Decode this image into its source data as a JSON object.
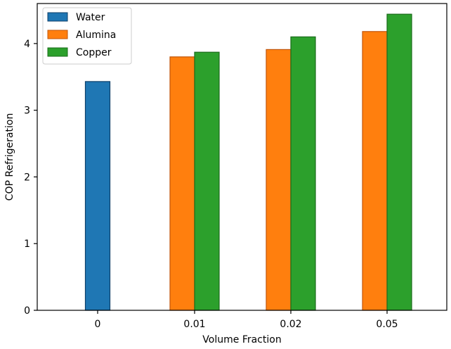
{
  "chart_data": {
    "type": "bar",
    "title": "",
    "xlabel": "Volume Fraction",
    "ylabel": "COP Refrigeration",
    "categories": [
      "0",
      "0.01",
      "0.02",
      "0.05"
    ],
    "ylim": [
      0,
      4.6
    ],
    "yticks": [
      0,
      1,
      2,
      3,
      4
    ],
    "grid": false,
    "legend_position": "top-left",
    "series": [
      {
        "name": "Water",
        "color": "#1f77b4",
        "edge_color": "#0e3f6a",
        "values": [
          3.43,
          null,
          null,
          null
        ]
      },
      {
        "name": "Alumina",
        "color": "#ff7f0e",
        "edge_color": "#c2560a",
        "values": [
          null,
          3.8,
          3.91,
          4.18
        ]
      },
      {
        "name": "Copper",
        "color": "#2ca02c",
        "edge_color": "#1a6b1a",
        "values": [
          null,
          3.87,
          4.1,
          4.44
        ]
      }
    ]
  }
}
